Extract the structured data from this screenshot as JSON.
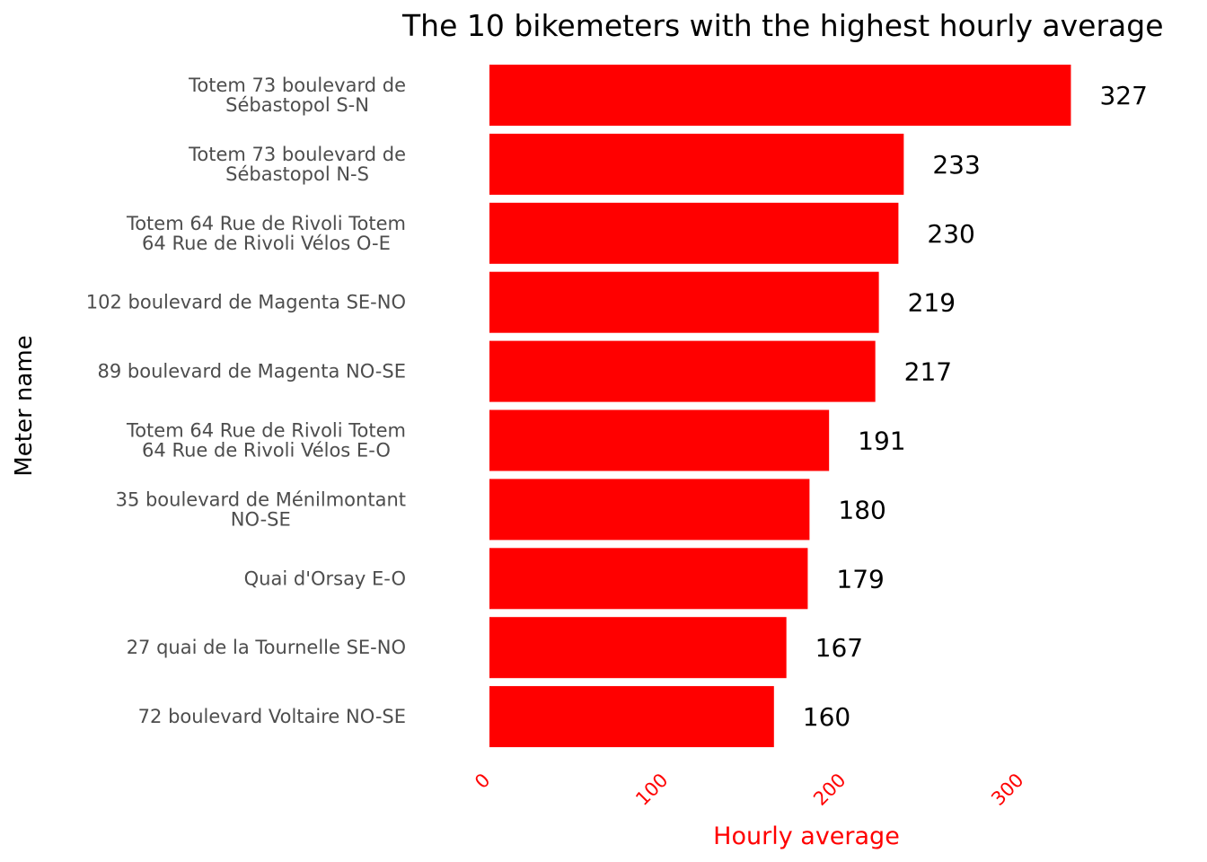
{
  "chart_data": {
    "type": "bar",
    "orientation": "horizontal",
    "title": "The 10 bikemeters with the highest hourly average",
    "xlabel": "Hourly average",
    "ylabel": "Meter name",
    "categories": [
      [
        "Totem 73 boulevard de",
        "Sébastopol S-N"
      ],
      [
        "Totem 73 boulevard de",
        "Sébastopol N-S"
      ],
      [
        "Totem 64 Rue de Rivoli Totem",
        "64 Rue de Rivoli Vélos O-E"
      ],
      [
        "102 boulevard de Magenta SE-NO"
      ],
      [
        "89 boulevard de Magenta NO-SE"
      ],
      [
        "Totem 64 Rue de Rivoli Totem",
        "64 Rue de Rivoli Vélos E-O"
      ],
      [
        "35 boulevard de Ménilmontant",
        "NO-SE"
      ],
      [
        "Quai d'Orsay E-O"
      ],
      [
        "27 quai de la Tournelle SE-NO"
      ],
      [
        "72 boulevard Voltaire NO-SE"
      ]
    ],
    "values": [
      327,
      233,
      230,
      219,
      217,
      191,
      180,
      179,
      167,
      160
    ],
    "value_labels": [
      "327",
      "233",
      "230",
      "219",
      "217",
      "191",
      "180",
      "179",
      "167",
      "160"
    ],
    "xticks": [
      0,
      100,
      200,
      300
    ],
    "xtick_labels": [
      "0",
      "100",
      "200",
      "300"
    ],
    "xlim": [
      0,
      340
    ],
    "grid": false,
    "legend": "none",
    "colors": {
      "bar": "#ff0000",
      "x_axis_text": "#ff0000",
      "category_text": "#4d4d4d",
      "value_text": "#000000"
    }
  }
}
